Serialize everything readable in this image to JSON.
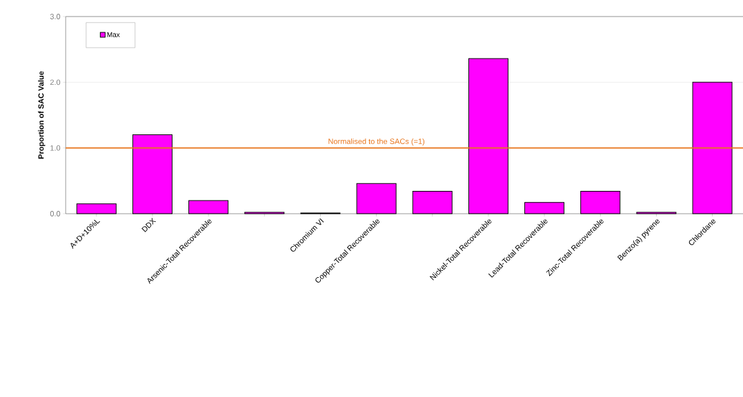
{
  "chart_data": {
    "type": "bar",
    "ylabel": "Proportion of SAC Value",
    "categories": [
      "A+D+10%L",
      "DDX",
      "Arsenic-Total Recoverable",
      null,
      "Chromium VI",
      "Copper-Total Recoverable",
      null,
      "Nickel-Total Recoverable",
      "Lead-Total Recoverable",
      "Zinc-Total Recoverable",
      "Benzo(a) pyrene",
      "Chlordane"
    ],
    "series": [
      {
        "name": "Max",
        "color": "#ff00ff",
        "values": [
          0.15,
          1.2,
          0.2,
          0.02,
          0.01,
          0.46,
          0.34,
          2.36,
          0.17,
          0.34,
          0.02,
          2.0
        ]
      }
    ],
    "ylim": [
      0,
      3
    ],
    "yticks": [
      {
        "value": 0,
        "label": "0.0"
      },
      {
        "value": 1,
        "label": "1.0"
      },
      {
        "value": 2,
        "label": "2.0"
      },
      {
        "value": 3,
        "label": "3.0"
      }
    ],
    "grid": "y",
    "legend": "top left",
    "ref_lines": [
      {
        "axis": "y",
        "value": 1,
        "label": "Normalised to the SACs (=1)",
        "color": "#e8761e"
      }
    ]
  }
}
